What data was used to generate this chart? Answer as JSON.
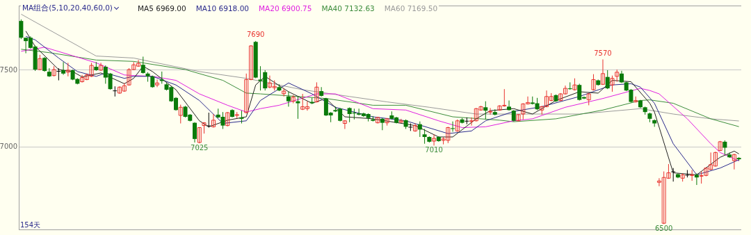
{
  "chart_data": {
    "type": "candlestick",
    "legend_title": "MA组合(5,10,20,40,60,0)",
    "legend": "top left",
    "grid": "y",
    "ylim": [
      6465,
      7920
    ],
    "yticks": [
      7000,
      7500
    ],
    "categories": [
      null,
      null,
      null,
      null,
      null,
      null,
      null,
      null,
      null,
      null,
      null,
      null,
      null,
      null,
      null,
      null,
      null,
      null,
      null,
      null,
      null,
      null,
      null,
      null,
      null,
      null,
      null,
      null,
      null,
      null,
      null,
      null,
      null,
      null,
      null,
      null,
      null,
      null,
      null,
      null,
      null,
      null,
      null,
      null,
      null,
      null,
      null,
      null,
      null,
      null,
      null,
      null,
      null,
      null,
      null,
      null,
      null,
      null,
      null,
      null,
      null,
      null,
      null,
      null,
      null,
      null,
      null,
      null,
      null,
      null,
      null,
      null,
      null,
      null,
      null,
      null,
      null,
      null,
      null,
      null,
      null,
      null,
      null,
      null,
      null,
      null,
      null,
      null,
      null,
      null,
      null,
      null,
      null,
      null,
      null,
      null,
      null,
      null,
      null,
      null,
      null,
      null,
      null,
      null,
      null,
      null,
      null,
      null,
      null,
      null,
      null,
      null,
      null,
      null,
      null,
      null,
      null,
      null,
      null,
      null,
      null,
      null,
      null,
      null,
      null,
      null,
      null,
      null,
      null,
      null,
      null,
      null,
      null,
      null,
      null,
      null,
      null,
      null,
      null,
      null,
      null,
      null,
      null,
      null,
      null,
      null,
      null,
      null,
      null,
      null,
      null,
      null,
      null,
      null
    ],
    "ohlc": [
      [
        7820,
        7830,
        7702,
        7711
      ],
      [
        7711,
        7711,
        7610,
        7689
      ],
      [
        7711,
        7720,
        7640,
        7645
      ],
      [
        7654,
        7660,
        7495,
        7504
      ],
      [
        7504,
        7600,
        7500,
        7575
      ],
      [
        7580,
        7585,
        7490,
        7495
      ],
      [
        7490,
        7513,
        7456,
        7460
      ],
      [
        7465,
        7526,
        7460,
        7504
      ],
      [
        7495,
        7513,
        7434,
        7495
      ],
      [
        7500,
        7553,
        7470,
        7478
      ],
      [
        7487,
        7548,
        7460,
        7500
      ],
      [
        7500,
        7504,
        7435,
        7439
      ],
      [
        7443,
        7448,
        7408,
        7412
      ],
      [
        7425,
        7469,
        7420,
        7452
      ],
      [
        7439,
        7478,
        7435,
        7469
      ],
      [
        7460,
        7548,
        7456,
        7531
      ],
      [
        7522,
        7553,
        7496,
        7500
      ],
      [
        7500,
        7548,
        7496,
        7531
      ],
      [
        7522,
        7531,
        7412,
        7452
      ],
      [
        7478,
        7482,
        7373,
        7377
      ],
      [
        7368,
        7395,
        7329,
        7368
      ],
      [
        7351,
        7395,
        7347,
        7390
      ],
      [
        7364,
        7417,
        7360,
        7399
      ],
      [
        7404,
        7513,
        7400,
        7504
      ],
      [
        7504,
        7553,
        7500,
        7535
      ],
      [
        7526,
        7566,
        7522,
        7544
      ],
      [
        7535,
        7588,
        7478,
        7482
      ],
      [
        7478,
        7487,
        7425,
        7460
      ],
      [
        7460,
        7465,
        7386,
        7390
      ],
      [
        7404,
        7439,
        7390,
        7417
      ],
      [
        7439,
        7491,
        7412,
        7430
      ],
      [
        7408,
        7417,
        7368,
        7373
      ],
      [
        7390,
        7395,
        7294,
        7298
      ],
      [
        7320,
        7325,
        7237,
        7241
      ],
      [
        7206,
        7276,
        7154,
        7259
      ],
      [
        7263,
        7268,
        7193,
        7197
      ],
      [
        7211,
        7215,
        7167,
        7171
      ],
      [
        7158,
        7162,
        7030,
        7053
      ],
      [
        7030,
        7130,
        7025,
        7127
      ],
      [
        7140,
        7162,
        7088,
        7158
      ],
      [
        7140,
        7224,
        7127,
        7140
      ],
      [
        7132,
        7215,
        7127,
        7175
      ],
      [
        7211,
        7250,
        7189,
        7193
      ],
      [
        7197,
        7228,
        7118,
        7140
      ],
      [
        7140,
        7228,
        7135,
        7224
      ],
      [
        7241,
        7246,
        7193,
        7197
      ],
      [
        7206,
        7228,
        7189,
        7211
      ],
      [
        7193,
        7237,
        7154,
        7184
      ],
      [
        7224,
        7478,
        7220,
        7439
      ],
      [
        7439,
        7662,
        7435,
        7658
      ],
      [
        7684,
        7690,
        7448,
        7452
      ],
      [
        7439,
        7526,
        7368,
        7430
      ],
      [
        7487,
        7500,
        7368,
        7382
      ],
      [
        7390,
        7465,
        7382,
        7417
      ],
      [
        7386,
        7434,
        7368,
        7395
      ],
      [
        7390,
        7408,
        7364,
        7368
      ],
      [
        7347,
        7382,
        7329,
        7364
      ],
      [
        7329,
        7360,
        7263,
        7298
      ],
      [
        7298,
        7338,
        7285,
        7325
      ],
      [
        7298,
        7329,
        7184,
        7285
      ],
      [
        7246,
        7346,
        7241,
        7263
      ],
      [
        7250,
        7298,
        7237,
        7263
      ],
      [
        7294,
        7320,
        7280,
        7285
      ],
      [
        7294,
        7421,
        7290,
        7390
      ],
      [
        7364,
        7390,
        7329,
        7333
      ],
      [
        7316,
        7320,
        7202,
        7206
      ],
      [
        7224,
        7228,
        7162,
        7206
      ],
      [
        7241,
        7263,
        7228,
        7232
      ],
      [
        7250,
        7254,
        7167,
        7171
      ],
      [
        7154,
        7175,
        7118,
        7171
      ],
      [
        7254,
        7258,
        7162,
        7215
      ],
      [
        7224,
        7250,
        7180,
        7219
      ],
      [
        7219,
        7250,
        7206,
        7211
      ],
      [
        7219,
        7224,
        7197,
        7202
      ],
      [
        7215,
        7219,
        7167,
        7189
      ],
      [
        7180,
        7202,
        7167,
        7171
      ],
      [
        7158,
        7197,
        7154,
        7193
      ],
      [
        7184,
        7189,
        7110,
        7158
      ],
      [
        7158,
        7189,
        7140,
        7184
      ],
      [
        7206,
        7232,
        7180,
        7184
      ],
      [
        7193,
        7197,
        7154,
        7158
      ],
      [
        7162,
        7184,
        7158,
        7171
      ],
      [
        7175,
        7180,
        7118,
        7132
      ],
      [
        7132,
        7154,
        7105,
        7132
      ],
      [
        7105,
        7154,
        7100,
        7140
      ],
      [
        7149,
        7167,
        7066,
        7114
      ],
      [
        7083,
        7118,
        7022,
        7066
      ],
      [
        7066,
        7070,
        7030,
        7035
      ],
      [
        7039,
        7083,
        7010,
        7057
      ],
      [
        7066,
        7070,
        7035,
        7039
      ],
      [
        7044,
        7066,
        7018,
        7053
      ],
      [
        7044,
        7132,
        7026,
        7127
      ],
      [
        7123,
        7167,
        7100,
        7118
      ],
      [
        7105,
        7180,
        7100,
        7171
      ],
      [
        7180,
        7189,
        7154,
        7158
      ],
      [
        7171,
        7193,
        7149,
        7171
      ],
      [
        7167,
        7193,
        7140,
        7171
      ],
      [
        7171,
        7254,
        7167,
        7250
      ],
      [
        7241,
        7268,
        7237,
        7263
      ],
      [
        7259,
        7298,
        7180,
        7237
      ],
      [
        7228,
        7254,
        7211,
        7232
      ],
      [
        7228,
        7246,
        7206,
        7211
      ],
      [
        7241,
        7272,
        7237,
        7268
      ],
      [
        7268,
        7377,
        7263,
        7272
      ],
      [
        7263,
        7303,
        7237,
        7241
      ],
      [
        7237,
        7241,
        7167,
        7171
      ],
      [
        7171,
        7215,
        7167,
        7211
      ],
      [
        7215,
        7285,
        7180,
        7281
      ],
      [
        7281,
        7329,
        7277,
        7290
      ],
      [
        7290,
        7329,
        7277,
        7281
      ],
      [
        7285,
        7320,
        7241,
        7246
      ],
      [
        7241,
        7268,
        7211,
        7263
      ],
      [
        7263,
        7368,
        7259,
        7329
      ],
      [
        7303,
        7351,
        7298,
        7329
      ],
      [
        7338,
        7342,
        7294,
        7298
      ],
      [
        7303,
        7351,
        7298,
        7346
      ],
      [
        7346,
        7400,
        7342,
        7382
      ],
      [
        7382,
        7421,
        7373,
        7377
      ],
      [
        7373,
        7447,
        7368,
        7404
      ],
      [
        7404,
        7412,
        7303,
        7307
      ],
      [
        7325,
        7329,
        7312,
        7316
      ],
      [
        7307,
        7351,
        7272,
        7346
      ],
      [
        7373,
        7474,
        7368,
        7439
      ],
      [
        7434,
        7439,
        7400,
        7404
      ],
      [
        7408,
        7570,
        7404,
        7478
      ],
      [
        7456,
        7500,
        7377,
        7382
      ],
      [
        7404,
        7465,
        7360,
        7447
      ],
      [
        7460,
        7504,
        7425,
        7487
      ],
      [
        7478,
        7496,
        7417,
        7421
      ],
      [
        7421,
        7425,
        7364,
        7368
      ],
      [
        7373,
        7377,
        7290,
        7294
      ],
      [
        7294,
        7329,
        7290,
        7303
      ],
      [
        7303,
        7307,
        7254,
        7259
      ],
      [
        7259,
        7263,
        7211,
        7228
      ],
      [
        7219,
        7224,
        7162,
        7184
      ],
      [
        7175,
        7180,
        7132,
        7154
      ],
      [
        6771,
        6798,
        6746,
        6780
      ],
      [
        6505,
        6842,
        6500,
        6803
      ],
      [
        6798,
        6890,
        6794,
        6833
      ],
      [
        6842,
        6864,
        6776,
        6842
      ],
      [
        6824,
        6829,
        6798,
        6803
      ],
      [
        6798,
        6829,
        6776,
        6820
      ],
      [
        6820,
        6851,
        6803,
        6820
      ],
      [
        6816,
        6851,
        6781,
        6820
      ],
      [
        6820,
        6829,
        6754,
        6803
      ],
      [
        6811,
        6842,
        6763,
        6816
      ],
      [
        6816,
        6868,
        6811,
        6864
      ],
      [
        6855,
        6965,
        6851,
        6886
      ],
      [
        6877,
        6970,
        6873,
        6965
      ],
      [
        6978,
        7040,
        6974,
        7035
      ],
      [
        7035,
        7044,
        6952,
        6996
      ],
      [
        6952,
        6965,
        6930,
        6934
      ],
      [
        6912,
        6956,
        6855,
        6952
      ],
      [
        6930,
        6934,
        6912,
        6921
      ]
    ],
    "colors": [
      "#0a7a0a",
      "#0a7a0a",
      "#0a7a0a",
      "#0a7a0a",
      "#e8322e",
      "#0a7a0a",
      "#0a7a0a",
      "#e8322e",
      "#000000",
      "#0a7a0a",
      "#e8322e",
      "#0a7a0a",
      "#0a7a0a",
      "#e8322e",
      "#e8322e",
      "#e8322e",
      "#0a7a0a",
      "#e8322e",
      "#0a7a0a",
      "#0a7a0a",
      "#000000",
      "#e8322e",
      "#e8322e",
      "#e8322e",
      "#e8322e",
      "#e8322e",
      "#0a7a0a",
      "#0a7a0a",
      "#0a7a0a",
      "#e8322e",
      "#0a7a0a",
      "#0a7a0a",
      "#0a7a0a",
      "#0a7a0a",
      "#e8322e",
      "#0a7a0a",
      "#0a7a0a",
      "#0a7a0a",
      "#e8322e",
      "#e8322e",
      "#000000",
      "#e8322e",
      "#0a7a0a",
      "#0a7a0a",
      "#e8322e",
      "#0a7a0a",
      "#e8322e",
      "#0a7a0a",
      "#e8322e",
      "#e8322e",
      "#0a7a0a",
      "#0a7a0a",
      "#0a7a0a",
      "#e8322e",
      "#e8322e",
      "#0a7a0a",
      "#e8322e",
      "#0a7a0a",
      "#e8322e",
      "#0a7a0a",
      "#e8322e",
      "#e8322e",
      "#0a7a0a",
      "#e8322e",
      "#0a7a0a",
      "#0a7a0a",
      "#0a7a0a",
      "#0a7a0a",
      "#0a7a0a",
      "#e8322e",
      "#0a7a0a",
      "#0a7a0a",
      "#0a7a0a",
      "#0a7a0a",
      "#0a7a0a",
      "#0a7a0a",
      "#e8322e",
      "#0a7a0a",
      "#e8322e",
      "#0a7a0a",
      "#0a7a0a",
      "#e8322e",
      "#0a7a0a",
      "#000000",
      "#e8322e",
      "#0a7a0a",
      "#0a7a0a",
      "#0a7a0a",
      "#e8322e",
      "#0a7a0a",
      "#e8322e",
      "#e8322e",
      "#0a7a0a",
      "#e8322e",
      "#0a7a0a",
      "#000000",
      "#e8322e",
      "#e8322e",
      "#e8322e",
      "#0a7a0a",
      "#e8322e",
      "#0a7a0a",
      "#e8322e",
      "#e8322e",
      "#0a7a0a",
      "#0a7a0a",
      "#e8322e",
      "#e8322e",
      "#e8322e",
      "#0a7a0a",
      "#0a7a0a",
      "#e8322e",
      "#e8322e",
      "#e8322e",
      "#0a7a0a",
      "#e8322e",
      "#e8322e",
      "#0a7a0a",
      "#e8322e",
      "#0a7a0a",
      "#0a7a0a",
      "#e8322e",
      "#e8322e",
      "#0a7a0a",
      "#e8322e",
      "#0a7a0a",
      "#e8322e",
      "#e8322e",
      "#0a7a0a",
      "#0a7a0a",
      "#0a7a0a",
      "#e8322e",
      "#0a7a0a",
      "#0a7a0a",
      "#0a7a0a",
      "#0a7a0a",
      "#e8322e",
      "#e8322e",
      "#e8322e",
      "#000000",
      "#0a7a0a",
      "#e8322e",
      "#000000",
      "#e8322e",
      "#0a7a0a",
      "#e8322e",
      "#e8322e",
      "#e8322e",
      "#e8322e",
      "#e8322e",
      "#0a7a0a",
      "#0a7a0a",
      "#e8322e",
      "#0a7a0a"
    ],
    "series": [
      {
        "type": "line",
        "name": "MA5 6969.00",
        "color": "#222222",
        "values": [
          null,
          7754,
          null,
          7654,
          null,
          null,
          null,
          null,
          7504,
          null,
          null,
          7491,
          null,
          7456,
          null,
          null,
          null,
          7482,
          null,
          null,
          null,
          null,
          7412,
          null,
          7447,
          null,
          7526,
          null,
          7491,
          null,
          null,
          null,
          null,
          7373,
          null,
          null,
          null,
          null,
          7171,
          null,
          7132,
          null,
          null,
          null,
          7175,
          null,
          null,
          null,
          7197,
          null,
          7404,
          null,
          7460,
          null,
          null,
          null,
          null,
          7360,
          null,
          null,
          null,
          null,
          7285,
          null,
          null,
          7316,
          null,
          null,
          null,
          7197,
          null,
          null,
          null,
          null,
          null,
          7184,
          null,
          null,
          null,
          null,
          null,
          null,
          null,
          null,
          7140,
          null,
          null,
          null,
          null,
          7066,
          null,
          null,
          7066,
          null,
          null,
          null,
          null,
          7184,
          null,
          null,
          7237,
          null,
          null,
          null,
          null,
          7250,
          null,
          null,
          null,
          7215,
          null,
          null,
          null,
          null,
          7303,
          null,
          null,
          null,
          null,
          7360,
          null,
          null,
          null,
          7351,
          null,
          null,
          7434,
          null,
          null,
          null,
          7425,
          null,
          null,
          null,
          7285,
          7228,
          null,
          null,
          null,
          6833,
          null,
          null,
          null,
          null,
          6820,
          null,
          null,
          null,
          null,
          6934,
          null,
          null,
          6974,
          6956
        ]
      },
      {
        "type": "line",
        "name": "MA10 6918.00",
        "color": "#2a2a8c",
        "values": [
          null,
          7720,
          null,
          7697,
          null,
          null,
          null,
          null,
          7579,
          null,
          null,
          null,
          7491,
          null,
          null,
          null,
          7460,
          null,
          7482,
          null,
          null,
          null,
          7447,
          null,
          7460,
          null,
          null,
          null,
          7460,
          null,
          null,
          null,
          null,
          7404,
          null,
          null,
          null,
          null,
          7303,
          null,
          null,
          null,
          null,
          7154,
          null,
          null,
          null,
          null,
          7171,
          null,
          null,
          7303,
          null,
          null,
          null,
          null,
          null,
          7417,
          null,
          null,
          null,
          null,
          7346,
          null,
          null,
          null,
          null,
          7259,
          null,
          null,
          null,
          null,
          null,
          null,
          null,
          7197,
          null,
          null,
          null,
          null,
          null,
          null,
          7171,
          null,
          null,
          null,
          null,
          null,
          null,
          null,
          null,
          7088,
          null,
          null,
          null,
          null,
          7105,
          null,
          null,
          7171,
          null,
          null,
          null,
          null,
          null,
          7232,
          null,
          null,
          null,
          null,
          null,
          7263,
          null,
          null,
          null,
          null,
          null,
          null,
          null,
          7329,
          null,
          null,
          null,
          null,
          null,
          null,
          7404,
          null,
          null,
          null,
          7412,
          null,
          7390,
          null,
          null,
          7285,
          null,
          null,
          null,
          7022,
          null,
          null,
          null,
          null,
          6820,
          null,
          null,
          null,
          null,
          6864,
          null,
          null,
          null,
          6918
        ]
      },
      {
        "type": "line",
        "name": "MA20 6900.75",
        "color": "#e020e0",
        "values": [
          7623,
          null,
          null,
          null,
          null,
          7649,
          null,
          null,
          null,
          null,
          null,
          null,
          null,
          null,
          null,
          null,
          7548,
          null,
          null,
          null,
          null,
          null,
          7469,
          null,
          7465,
          null,
          null,
          null,
          7460,
          null,
          null,
          null,
          null,
          7434,
          null,
          null,
          null,
          null,
          7346,
          null,
          null,
          null,
          null,
          null,
          7272,
          null,
          null,
          null,
          7228,
          null,
          null,
          7250,
          null,
          null,
          null,
          7272,
          null,
          null,
          null,
          null,
          null,
          null,
          null,
          7346,
          null,
          null,
          null,
          7346,
          null,
          null,
          null,
          null,
          null,
          null,
          null,
          7250,
          null,
          null,
          null,
          null,
          null,
          null,
          7241,
          null,
          null,
          null,
          null,
          null,
          null,
          7171,
          null,
          null,
          null,
          null,
          7127,
          null,
          null,
          null,
          null,
          7132,
          null,
          null,
          null,
          null,
          null,
          7171,
          null,
          null,
          null,
          7184,
          null,
          null,
          null,
          null,
          null,
          null,
          7259,
          null,
          null,
          null,
          null,
          null,
          null,
          null,
          7316,
          null,
          null,
          null,
          null,
          null,
          null,
          null,
          7382,
          null,
          7368,
          null,
          7346,
          null,
          null,
          null,
          null,
          null,
          7184,
          null,
          null,
          null,
          null,
          7022,
          null,
          6965,
          null,
          null,
          null,
          6910
        ]
      },
      {
        "type": "line",
        "name": "MA40 7132.63",
        "color": "#3c8c3c",
        "values": [
          7636,
          null,
          null,
          null,
          null,
          null,
          7614,
          null,
          null,
          null,
          null,
          null,
          null,
          null,
          null,
          null,
          7566,
          null,
          null,
          null,
          null,
          null,
          null,
          null,
          7557,
          null,
          null,
          null,
          null,
          null,
          null,
          null,
          null,
          null,
          null,
          7504,
          null,
          null,
          null,
          null,
          null,
          null,
          null,
          7434,
          null,
          null,
          null,
          null,
          7351,
          null,
          null,
          7346,
          null,
          null,
          null,
          null,
          null,
          null,
          null,
          null,
          null,
          null,
          null,
          null,
          null,
          7316,
          null,
          null,
          null,
          null,
          null,
          null,
          null,
          null,
          null,
          7272,
          null,
          null,
          null,
          null,
          null,
          null,
          7272,
          null,
          null,
          null,
          null,
          null,
          null,
          null,
          null,
          null,
          7197,
          null,
          null,
          null,
          null,
          null,
          null,
          null,
          null,
          null,
          7175,
          null,
          null,
          7165,
          null,
          null,
          null,
          null,
          null,
          null,
          null,
          null,
          7184,
          null,
          null,
          null,
          null,
          null,
          null,
          null,
          null,
          null,
          7241,
          null,
          null,
          null,
          null,
          null,
          null,
          null,
          7303,
          null,
          7307,
          null,
          null,
          null,
          null,
          7285,
          null,
          null,
          null,
          null,
          null,
          null,
          null,
          7184,
          null,
          null,
          null,
          null,
          null,
          7133
        ]
      },
      {
        "type": "line",
        "name": "MA60 7169.50",
        "color": "#9a9a9a",
        "values": [
          7864,
          null,
          null,
          null,
          null,
          null,
          null,
          null,
          null,
          null,
          null,
          null,
          null,
          null,
          null,
          null,
          7592,
          null,
          null,
          null,
          null,
          null,
          null,
          null,
          7579,
          null,
          7566,
          null,
          null,
          null,
          null,
          null,
          null,
          null,
          null,
          null,
          null,
          null,
          7491,
          null,
          null,
          null,
          null,
          null,
          null,
          null,
          null,
          null,
          7447,
          null,
          null,
          null,
          null,
          null,
          null,
          null,
          null,
          null,
          null,
          null,
          7373,
          null,
          null,
          null,
          null,
          null,
          null,
          null,
          null,
          null,
          7329,
          null,
          null,
          null,
          null,
          null,
          null,
          null,
          7294,
          null,
          null,
          null,
          null,
          null,
          null,
          null,
          null,
          7259,
          null,
          null,
          null,
          null,
          null,
          null,
          null,
          null,
          null,
          7215,
          null,
          null,
          null,
          null,
          null,
          null,
          null,
          7215,
          null,
          null,
          null,
          null,
          null,
          null,
          null,
          null,
          null,
          null,
          null,
          null,
          null,
          7215,
          null,
          null,
          null,
          null,
          null,
          null,
          null,
          null,
          null,
          null,
          null,
          null,
          7250,
          null,
          null,
          null,
          null,
          null,
          null,
          7215,
          null,
          null,
          null,
          null,
          null,
          null,
          null,
          7184,
          null,
          null,
          null,
          null,
          null,
          7170
        ]
      }
    ],
    "annotations": [
      {
        "text": "7690",
        "y": 7690
      },
      {
        "text": "7570",
        "y": 7570
      },
      {
        "text": "7025",
        "y": 7025
      },
      {
        "text": "7010",
        "y": 7010
      },
      {
        "text": "6500",
        "y": 6500
      },
      "154天"
    ]
  }
}
